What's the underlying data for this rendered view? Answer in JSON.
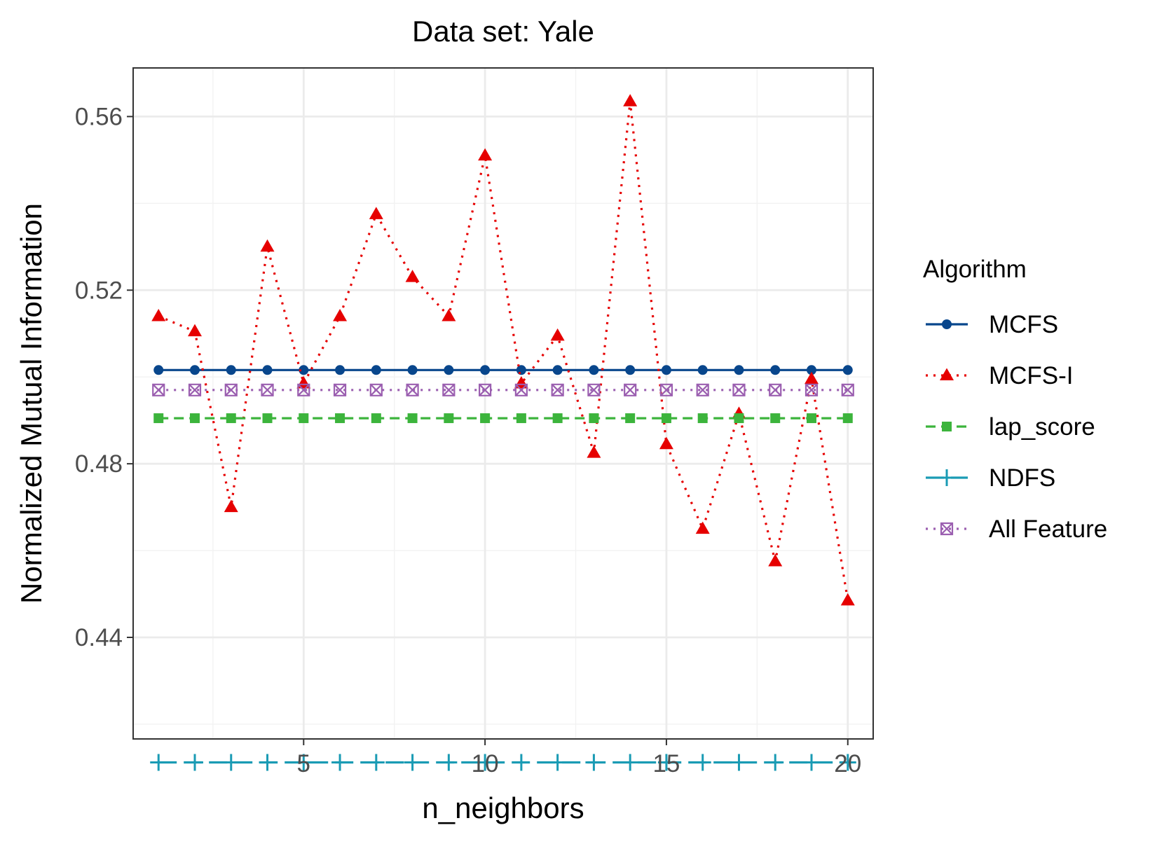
{
  "chart_data": {
    "type": "line",
    "title": "Data set: Yale",
    "xlabel": "n_neighbors",
    "ylabel": "Normalized Mutual Information",
    "xlim": [
      0.3,
      20.7
    ],
    "ylim": [
      0.4166,
      0.5712
    ],
    "xticks": [
      5,
      10,
      15,
      20
    ],
    "yticks": [
      0.44,
      0.48,
      0.52,
      0.56
    ],
    "minor_xticks": [
      2.5,
      7.5,
      12.5,
      17.5
    ],
    "minor_yticks": [
      0.42,
      0.46,
      0.5,
      0.54
    ],
    "grid": true,
    "legend": {
      "title": "Algorithm",
      "placement": "right"
    },
    "x": [
      1,
      2,
      3,
      4,
      5,
      6,
      7,
      8,
      9,
      10,
      11,
      12,
      13,
      14,
      15,
      16,
      17,
      18,
      19,
      20
    ],
    "series": [
      {
        "name": "MCFS",
        "color": "#08468c",
        "dash": "solid",
        "marker": "circle",
        "values": [
          0.5016,
          0.5016,
          0.5016,
          0.5016,
          0.5016,
          0.5016,
          0.5016,
          0.5016,
          0.5016,
          0.5016,
          0.5016,
          0.5016,
          0.5016,
          0.5016,
          0.5016,
          0.5016,
          0.5016,
          0.5016,
          0.5016,
          0.5016
        ]
      },
      {
        "name": "MCFS-I",
        "color": "#e60000",
        "dash": "dotted",
        "marker": "triangle",
        "values": [
          0.514,
          0.5105,
          0.47,
          0.53,
          0.4985,
          0.514,
          0.5375,
          0.523,
          0.514,
          0.551,
          0.4985,
          0.5095,
          0.4825,
          0.5635,
          0.4845,
          0.465,
          0.4915,
          0.4575,
          0.4995,
          0.4485
        ]
      },
      {
        "name": "lap_score",
        "color": "#3cb43c",
        "dash": "dashed",
        "marker": "square",
        "values": [
          0.4905,
          0.4905,
          0.4905,
          0.4905,
          0.4905,
          0.4905,
          0.4905,
          0.4905,
          0.4905,
          0.4905,
          0.4905,
          0.4905,
          0.4905,
          0.4905,
          0.4905,
          0.4905,
          0.4905,
          0.4905,
          0.4905,
          0.4905
        ]
      },
      {
        "name": "NDFS",
        "color": "#1a9bb4",
        "dash": "longdash",
        "marker": "plus",
        "values": [
          0.4112,
          0.4112,
          0.4112,
          0.4112,
          0.4112,
          0.4112,
          0.4112,
          0.4112,
          0.4112,
          0.4112,
          0.4112,
          0.4112,
          0.4112,
          0.4112,
          0.4112,
          0.4112,
          0.4112,
          0.4112,
          0.4112,
          0.4112
        ]
      },
      {
        "name": "All Feature",
        "color": "#9b5fb0",
        "dash": "dotted",
        "marker": "boxcross",
        "values": [
          0.497,
          0.497,
          0.497,
          0.497,
          0.497,
          0.497,
          0.497,
          0.497,
          0.497,
          0.497,
          0.497,
          0.497,
          0.497,
          0.497,
          0.497,
          0.497,
          0.497,
          0.497,
          0.497,
          0.497
        ]
      }
    ]
  }
}
